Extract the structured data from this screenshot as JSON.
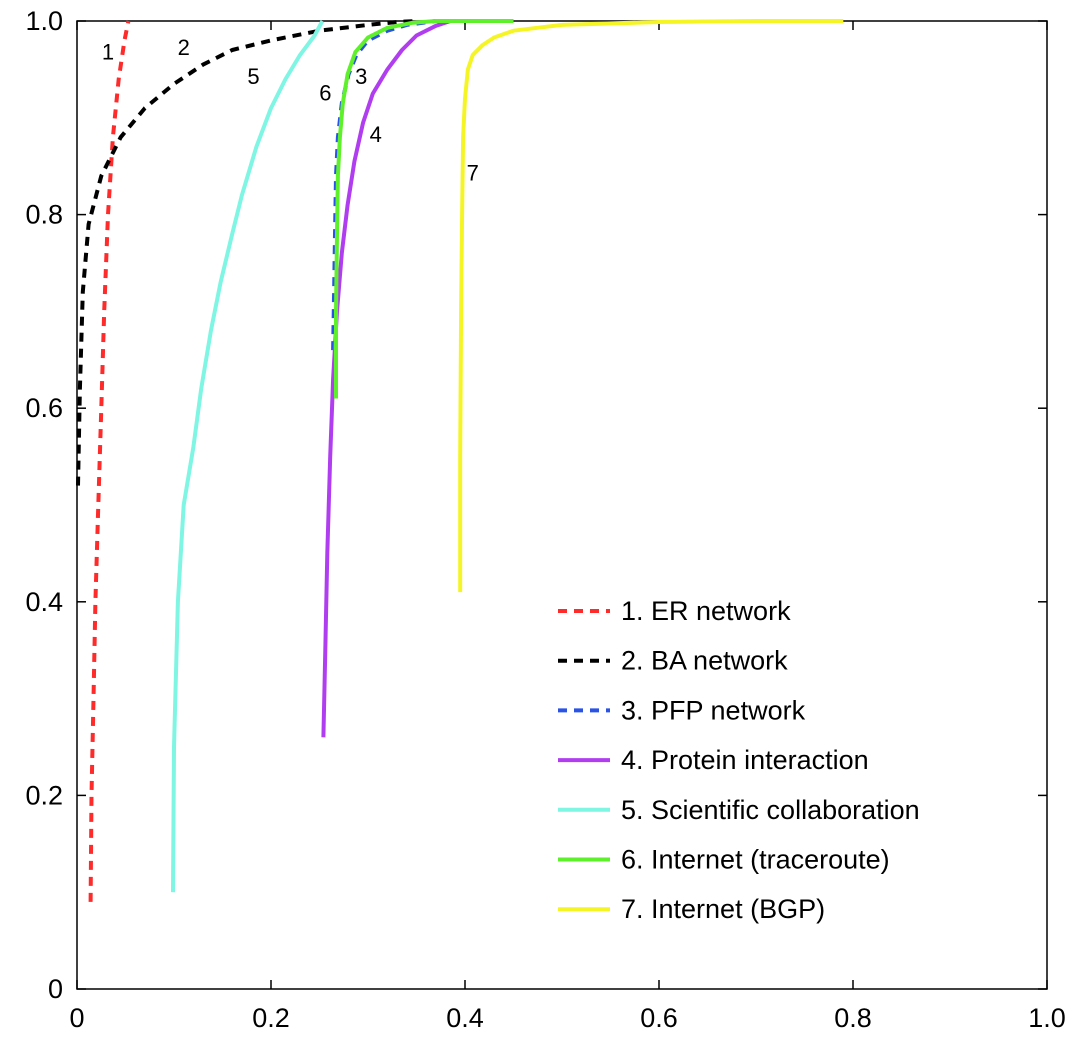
{
  "chart_data": {
    "type": "line",
    "title": "",
    "xlabel": "",
    "ylabel": "",
    "xlim": [
      0,
      1.0
    ],
    "ylim": [
      0,
      1.0
    ],
    "x_ticks": [
      "0",
      "0.2",
      "0.4",
      "0.6",
      "0.8",
      "1.0"
    ],
    "y_ticks": [
      "0",
      "0.2",
      "0.4",
      "0.6",
      "0.8",
      "1.0"
    ],
    "grid": false,
    "legend_position": "lower-right",
    "series": [
      {
        "name": "1. ER network",
        "label": "1",
        "color": "#ff2a2a",
        "dash": "dashed",
        "label_at": [
          0.032,
          0.96
        ],
        "points": [
          [
            0.014,
            0.09
          ],
          [
            0.015,
            0.2
          ],
          [
            0.017,
            0.3
          ],
          [
            0.019,
            0.4
          ],
          [
            0.022,
            0.5
          ],
          [
            0.025,
            0.6
          ],
          [
            0.028,
            0.7
          ],
          [
            0.032,
            0.8
          ],
          [
            0.037,
            0.88
          ],
          [
            0.043,
            0.94
          ],
          [
            0.049,
            0.98
          ],
          [
            0.053,
            1.0
          ]
        ]
      },
      {
        "name": "2. BA network",
        "label": "2",
        "color": "#000000",
        "dash": "dashed",
        "label_at": [
          0.11,
          0.965
        ],
        "points": [
          [
            0.001,
            0.52
          ],
          [
            0.003,
            0.62
          ],
          [
            0.006,
            0.72
          ],
          [
            0.012,
            0.79
          ],
          [
            0.025,
            0.84
          ],
          [
            0.045,
            0.88
          ],
          [
            0.07,
            0.91
          ],
          [
            0.1,
            0.935
          ],
          [
            0.13,
            0.955
          ],
          [
            0.16,
            0.97
          ],
          [
            0.2,
            0.98
          ],
          [
            0.25,
            0.99
          ],
          [
            0.3,
            0.996
          ],
          [
            0.33,
            0.999
          ],
          [
            0.35,
            1.0
          ]
        ]
      },
      {
        "name": "3. PFP network",
        "label": "3",
        "color": "#2a52e6",
        "dash": "dashed",
        "label_at": [
          0.293,
          0.935
        ],
        "points": [
          [
            0.264,
            0.66
          ],
          [
            0.265,
            0.72
          ],
          [
            0.266,
            0.78
          ],
          [
            0.267,
            0.84
          ],
          [
            0.269,
            0.88
          ],
          [
            0.273,
            0.915
          ],
          [
            0.28,
            0.945
          ],
          [
            0.288,
            0.965
          ],
          [
            0.3,
            0.98
          ],
          [
            0.32,
            0.99
          ],
          [
            0.34,
            0.996
          ],
          [
            0.37,
            1.0
          ]
        ]
      },
      {
        "name": "4. Protein interaction",
        "label": "4",
        "color": "#b03ef0",
        "dash": "solid",
        "label_at": [
          0.308,
          0.875
        ],
        "points": [
          [
            0.254,
            0.26
          ],
          [
            0.256,
            0.35
          ],
          [
            0.258,
            0.45
          ],
          [
            0.261,
            0.55
          ],
          [
            0.264,
            0.63
          ],
          [
            0.268,
            0.7
          ],
          [
            0.273,
            0.76
          ],
          [
            0.279,
            0.81
          ],
          [
            0.286,
            0.855
          ],
          [
            0.295,
            0.895
          ],
          [
            0.305,
            0.925
          ],
          [
            0.32,
            0.95
          ],
          [
            0.335,
            0.97
          ],
          [
            0.35,
            0.985
          ],
          [
            0.37,
            0.995
          ],
          [
            0.385,
            1.0
          ]
        ]
      },
      {
        "name": "5. Scientific collaboration",
        "label": "5",
        "color": "#7ff5e3",
        "dash": "solid",
        "label_at": [
          0.182,
          0.935
        ],
        "points": [
          [
            0.099,
            0.1
          ],
          [
            0.1,
            0.25
          ],
          [
            0.104,
            0.4
          ],
          [
            0.11,
            0.5
          ],
          [
            0.12,
            0.56
          ],
          [
            0.128,
            0.62
          ],
          [
            0.138,
            0.68
          ],
          [
            0.148,
            0.73
          ],
          [
            0.16,
            0.78
          ],
          [
            0.17,
            0.82
          ],
          [
            0.185,
            0.87
          ],
          [
            0.2,
            0.91
          ],
          [
            0.215,
            0.94
          ],
          [
            0.23,
            0.965
          ],
          [
            0.245,
            0.985
          ],
          [
            0.253,
            1.0
          ]
        ]
      },
      {
        "name": "6. Internet (traceroute)",
        "label": "6",
        "color": "#5ef02a",
        "dash": "solid",
        "label_at": [
          0.256,
          0.918
        ],
        "points": [
          [
            0.267,
            0.61
          ],
          [
            0.267,
            0.7
          ],
          [
            0.268,
            0.78
          ],
          [
            0.269,
            0.84
          ],
          [
            0.271,
            0.88
          ],
          [
            0.274,
            0.915
          ],
          [
            0.279,
            0.945
          ],
          [
            0.287,
            0.968
          ],
          [
            0.3,
            0.983
          ],
          [
            0.32,
            0.993
          ],
          [
            0.345,
            0.998
          ],
          [
            0.37,
            1.0
          ],
          [
            0.45,
            1.0
          ]
        ]
      },
      {
        "name": "7. Internet (BGP)",
        "label": "7",
        "color": "#f5f526",
        "dash": "solid",
        "label_at": [
          0.408,
          0.835
        ],
        "points": [
          [
            0.395,
            0.41
          ],
          [
            0.395,
            0.55
          ],
          [
            0.396,
            0.7
          ],
          [
            0.397,
            0.8
          ],
          [
            0.398,
            0.88
          ],
          [
            0.4,
            0.92
          ],
          [
            0.403,
            0.95
          ],
          [
            0.408,
            0.965
          ],
          [
            0.418,
            0.975
          ],
          [
            0.43,
            0.983
          ],
          [
            0.45,
            0.99
          ],
          [
            0.5,
            0.996
          ],
          [
            0.6,
            0.999
          ],
          [
            0.7,
            1.0
          ],
          [
            0.79,
            1.0
          ]
        ]
      }
    ]
  }
}
